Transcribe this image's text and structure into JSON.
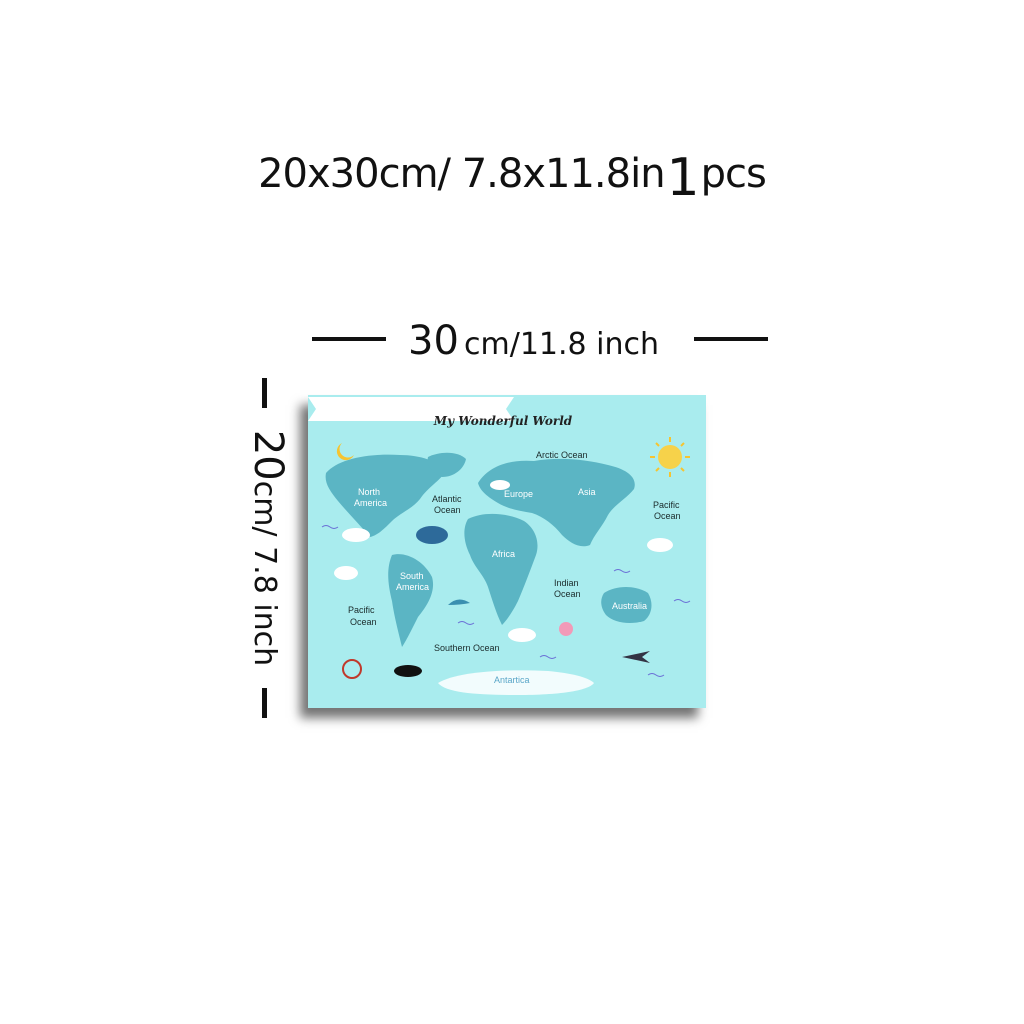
{
  "product": {
    "size_text": "20x30cm/ 7.8x11.8in",
    "count": "1",
    "unit": "pcs"
  },
  "dimensions": {
    "width_value": "30",
    "width_unit": "cm/11.8 inch",
    "height_value": "20",
    "height_unit": "cm/ 7.8 inch"
  },
  "poster": {
    "title": "My Wonderful World",
    "background_color": "#a9ecee",
    "land_color": "#5bb5c4",
    "labels": {
      "arctic_ocean": "Arctic Ocean",
      "north_america_1": "North",
      "north_america_2": "America",
      "atlantic_1": "Atlantic",
      "atlantic_2": "Ocean",
      "europe": "Europe",
      "asia": "Asia",
      "pacific_right_1": "Pacific",
      "pacific_right_2": "Ocean",
      "africa": "Africa",
      "south_america_1": "South",
      "south_america_2": "America",
      "pacific_left_1": "Pacific",
      "pacific_left_2": "Ocean",
      "indian_1": "Indian",
      "indian_2": "Ocean",
      "australia": "Australia",
      "southern_ocean": "Southern Ocean",
      "antartica": "Antartica"
    }
  }
}
